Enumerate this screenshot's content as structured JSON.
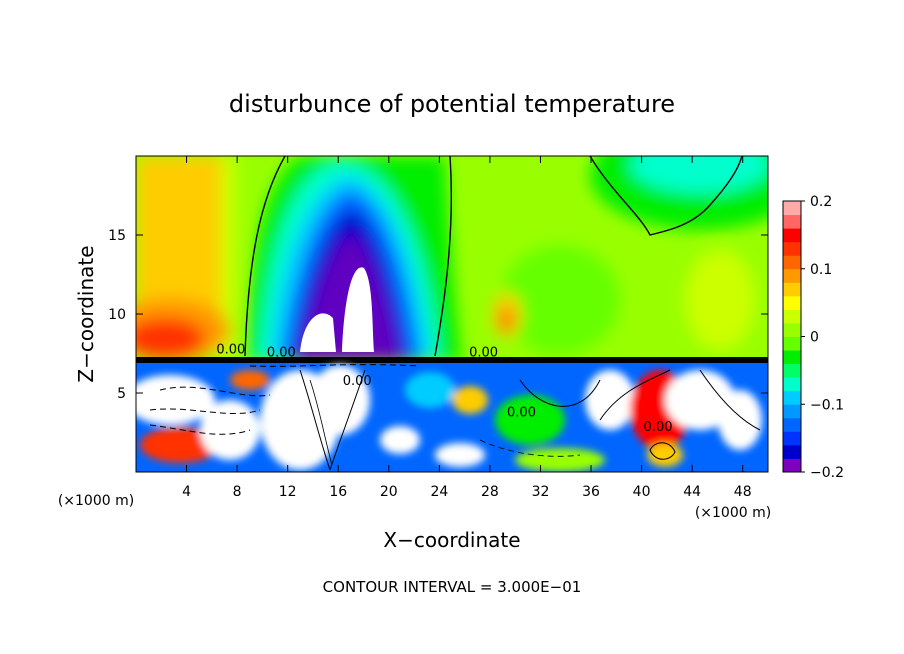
{
  "chart_data": {
    "type": "heatmap",
    "title": "disturbunce of potential temperature",
    "xlabel": "X−coordinate",
    "ylabel": "Z−coordinate",
    "x_unit_left": "(×1000 m)",
    "x_unit_right": "(×1000 m)",
    "xlim": [
      0,
      50
    ],
    "ylim": [
      0,
      20
    ],
    "x_ticks": [
      4,
      8,
      12,
      16,
      20,
      24,
      28,
      32,
      36,
      40,
      44,
      48
    ],
    "y_ticks": [
      5,
      10,
      15
    ],
    "footer": "CONTOUR INTERVAL = 3.000E−01",
    "colorbar": {
      "min": -0.2,
      "max": 0.2,
      "ticks": [
        "0.2",
        "0.1",
        "0",
        "−0.1",
        "−0.2"
      ],
      "tick_values": [
        0.2,
        0.1,
        0,
        -0.1,
        -0.2
      ],
      "colors": [
        "#8000c0",
        "#0000cc",
        "#0033ff",
        "#0066ff",
        "#0099ff",
        "#00ccff",
        "#00ffcc",
        "#00ff66",
        "#00ee00",
        "#66ff00",
        "#99ff00",
        "#ccff00",
        "#ffff00",
        "#ffcc00",
        "#ff9900",
        "#ff6600",
        "#ff3300",
        "#ff0000",
        "#ff6666",
        "#ffaaaa"
      ]
    },
    "contour_labels": [
      {
        "text": "0.00",
        "x": 7.5,
        "z": 7.5
      },
      {
        "text": "0.00",
        "x": 11.5,
        "z": 7.3
      },
      {
        "text": "0.00",
        "x": 17.5,
        "z": 5.5
      },
      {
        "text": "0.00",
        "x": 27.5,
        "z": 7.3
      },
      {
        "text": "0.00",
        "x": 30.5,
        "z": 3.5
      },
      {
        "text": "0.00",
        "x": 41.3,
        "z": 2.6
      }
    ]
  }
}
